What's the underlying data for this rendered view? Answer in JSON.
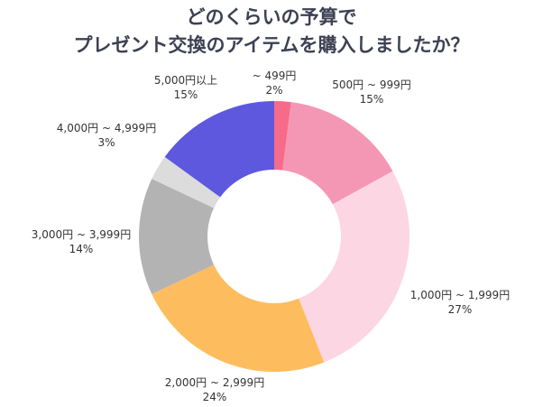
{
  "chart_data": {
    "type": "pie",
    "donut": true,
    "title": [
      "どのくらいの予算で",
      "プレゼント交換のアイテムを購入しましたか？"
    ],
    "categories": [
      "~ 499円",
      "500円 ~ 999円",
      "1,000円 ~ 1,999円",
      "2,000円 ~ 2,999円",
      "3,000円 ~ 3,999円",
      "4,000円 ~ 4,999円",
      "5,000円以上"
    ],
    "values": [
      2,
      15,
      27,
      24,
      14,
      3,
      15
    ],
    "labels": [
      "2%",
      "15%",
      "27%",
      "24%",
      "14%",
      "3%",
      "15%"
    ],
    "colors": [
      "#f76b8a",
      "#f497b5",
      "#fdd6e4",
      "#fdbd5e",
      "#b3b3b3",
      "#dcdcdc",
      "#5d58dd"
    ],
    "legend": "none"
  }
}
